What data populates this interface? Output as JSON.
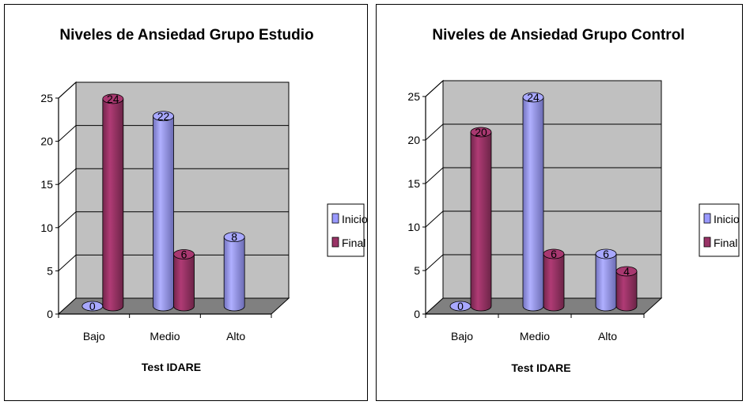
{
  "chart_data": [
    {
      "type": "bar",
      "title": "Niveles de Ansiedad Grupo Estudio",
      "xlabel": "Test IDARE",
      "ylabel": "",
      "categories": [
        "Bajo",
        "Medio",
        "Alto"
      ],
      "series": [
        {
          "name": "Inicio",
          "values": [
            0,
            22,
            8
          ],
          "labels": [
            "0",
            "22",
            "8"
          ],
          "color": "#9999FF"
        },
        {
          "name": "Final",
          "values": [
            24,
            6,
            null
          ],
          "labels": [
            "24",
            "6",
            ""
          ],
          "color": "#993366"
        }
      ],
      "ylim": [
        0,
        25
      ],
      "yticks": [
        "0",
        "5",
        "10",
        "15",
        "20",
        "25"
      ],
      "grid": true,
      "legend": "right",
      "style": "3d-cylinder",
      "wall_color": "#C0C0C0",
      "floor_color": "#808080"
    },
    {
      "type": "bar",
      "title": "Niveles de Ansiedad Grupo Control",
      "xlabel": "Test IDARE",
      "ylabel": "",
      "categories": [
        "Bajo",
        "Medio",
        "Alto"
      ],
      "series": [
        {
          "name": "Inicio",
          "values": [
            0,
            24,
            6
          ],
          "labels": [
            "0",
            "24",
            "6"
          ],
          "color": "#9999FF"
        },
        {
          "name": "Final",
          "values": [
            20,
            6,
            4
          ],
          "labels": [
            "20",
            "6",
            "4"
          ],
          "color": "#993366"
        }
      ],
      "ylim": [
        0,
        25
      ],
      "yticks": [
        "0",
        "5",
        "10",
        "15",
        "20",
        "25"
      ],
      "grid": true,
      "legend": "right",
      "style": "3d-cylinder",
      "wall_color": "#C0C0C0",
      "floor_color": "#808080"
    }
  ]
}
